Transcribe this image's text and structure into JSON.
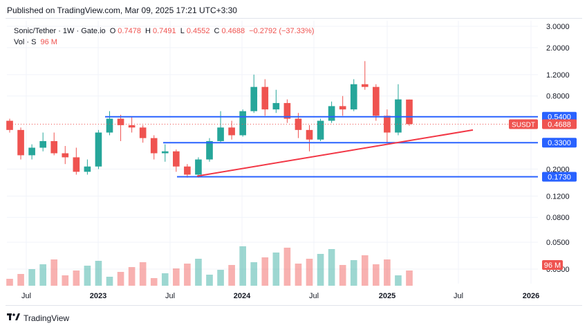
{
  "header": {
    "published": "Published on TradingView.com, Mar 09, 2025 17:21 UTC+3:30"
  },
  "legend": {
    "symbol": "Sonic/Tether · 1W · Gate.io",
    "o_label": "O",
    "o_val": "0.7478",
    "h_label": "H",
    "h_val": "0.7491",
    "l_label": "L",
    "l_val": "0.4552",
    "c_label": "C",
    "c_val": "0.4688",
    "change": "−0.2792 (−37.33%)",
    "vol_label": "Vol · S",
    "vol_val": "96 M"
  },
  "footer": {
    "logo_text": "TradingView"
  },
  "colors": {
    "up": "#26a69a",
    "down": "#ef5350",
    "level_line": "#2962ff",
    "trendline": "#f23645",
    "grid": "#f0f3fa",
    "axis_text": "#131722"
  },
  "chart_data": {
    "type": "candlestick",
    "scale": "log",
    "y_ticks": [
      "3.0000",
      "2.0000",
      "1.2000",
      "0.8000",
      "0.5400",
      "0.4688",
      "0.3300",
      "0.2000",
      "0.1730",
      "0.1200",
      "0.0800",
      "0.0500",
      "0.0300"
    ],
    "y_tick_values": [
      3.0,
      2.0,
      1.2,
      0.8,
      0.2,
      0.12,
      0.08,
      0.05,
      0.03
    ],
    "x_ticks": [
      "Jul",
      "2023",
      "Jul",
      "2024",
      "Jul",
      "2025",
      "Jul",
      "2026"
    ],
    "price_labels": [
      {
        "text": "0.5400",
        "value": 0.54,
        "kind": "level"
      },
      {
        "text": "0.3300",
        "value": 0.33,
        "kind": "level"
      },
      {
        "text": "0.1730",
        "value": 0.173,
        "kind": "level"
      }
    ],
    "last_price": {
      "symbol": "SUSDT",
      "text": "0.4688",
      "value": 0.4688
    },
    "volume_label": "96 M",
    "horizontal_levels": [
      0.54,
      0.33,
      0.173
    ],
    "trendline": {
      "from": {
        "date": "2023-09",
        "value": 0.175
      },
      "to": {
        "date": "2025-07",
        "value": 0.42
      }
    },
    "candles_close_path": [
      {
        "date": "2022-05",
        "o": 0.5,
        "h": 0.52,
        "c": 0.42,
        "l": 0.4
      },
      {
        "date": "2022-06",
        "o": 0.42,
        "h": 0.44,
        "c": 0.26,
        "l": 0.24
      },
      {
        "date": "2022-07",
        "o": 0.26,
        "h": 0.32,
        "c": 0.3,
        "l": 0.24
      },
      {
        "date": "2022-08",
        "o": 0.3,
        "h": 0.4,
        "c": 0.34,
        "l": 0.28
      },
      {
        "date": "2022-09",
        "o": 0.34,
        "h": 0.4,
        "c": 0.27,
        "l": 0.26
      },
      {
        "date": "2022-10",
        "o": 0.27,
        "h": 0.31,
        "c": 0.25,
        "l": 0.22
      },
      {
        "date": "2022-11",
        "o": 0.25,
        "h": 0.3,
        "c": 0.19,
        "l": 0.18
      },
      {
        "date": "2022-12",
        "o": 0.19,
        "h": 0.24,
        "c": 0.21,
        "l": 0.18
      },
      {
        "date": "2023-01",
        "o": 0.21,
        "h": 0.42,
        "c": 0.4,
        "l": 0.2
      },
      {
        "date": "2023-02",
        "o": 0.4,
        "h": 0.6,
        "c": 0.52,
        "l": 0.38
      },
      {
        "date": "2023-03",
        "o": 0.52,
        "h": 0.56,
        "c": 0.46,
        "l": 0.34
      },
      {
        "date": "2023-04",
        "o": 0.46,
        "h": 0.54,
        "c": 0.44,
        "l": 0.4
      },
      {
        "date": "2023-05",
        "o": 0.44,
        "h": 0.46,
        "c": 0.36,
        "l": 0.33
      },
      {
        "date": "2023-06",
        "o": 0.36,
        "h": 0.38,
        "c": 0.27,
        "l": 0.24
      },
      {
        "date": "2023-07",
        "o": 0.27,
        "h": 0.32,
        "c": 0.28,
        "l": 0.23
      },
      {
        "date": "2023-08",
        "o": 0.28,
        "h": 0.29,
        "c": 0.21,
        "l": 0.19
      },
      {
        "date": "2023-09",
        "o": 0.21,
        "h": 0.22,
        "c": 0.18,
        "l": 0.17
      },
      {
        "date": "2023-10",
        "o": 0.18,
        "h": 0.25,
        "c": 0.24,
        "l": 0.17
      },
      {
        "date": "2023-11",
        "o": 0.24,
        "h": 0.36,
        "c": 0.34,
        "l": 0.23
      },
      {
        "date": "2023-12",
        "o": 0.34,
        "h": 0.6,
        "c": 0.44,
        "l": 0.33
      },
      {
        "date": "2024-01",
        "o": 0.44,
        "h": 0.5,
        "c": 0.38,
        "l": 0.35
      },
      {
        "date": "2024-02",
        "o": 0.38,
        "h": 0.62,
        "c": 0.6,
        "l": 0.37
      },
      {
        "date": "2024-03",
        "o": 0.6,
        "h": 1.2,
        "c": 0.95,
        "l": 0.58
      },
      {
        "date": "2024-04",
        "o": 0.95,
        "h": 1.1,
        "c": 0.62,
        "l": 0.55
      },
      {
        "date": "2024-05",
        "o": 0.62,
        "h": 0.9,
        "c": 0.7,
        "l": 0.58
      },
      {
        "date": "2024-06",
        "o": 0.7,
        "h": 0.75,
        "c": 0.52,
        "l": 0.48
      },
      {
        "date": "2024-07",
        "o": 0.52,
        "h": 0.58,
        "c": 0.42,
        "l": 0.36
      },
      {
        "date": "2024-08",
        "o": 0.42,
        "h": 0.46,
        "c": 0.35,
        "l": 0.28
      },
      {
        "date": "2024-09",
        "o": 0.35,
        "h": 0.52,
        "c": 0.5,
        "l": 0.34
      },
      {
        "date": "2024-10",
        "o": 0.5,
        "h": 0.72,
        "c": 0.66,
        "l": 0.48
      },
      {
        "date": "2024-11",
        "o": 0.66,
        "h": 0.8,
        "c": 0.62,
        "l": 0.55
      },
      {
        "date": "2024-12",
        "o": 0.62,
        "h": 1.1,
        "c": 1.0,
        "l": 0.6
      },
      {
        "date": "2025-01",
        "o": 1.0,
        "h": 1.55,
        "c": 0.95,
        "l": 0.9
      },
      {
        "date": "2025-02",
        "o": 0.95,
        "h": 1.0,
        "c": 0.55,
        "l": 0.5
      },
      {
        "date": "2025-03",
        "o": 0.55,
        "h": 0.62,
        "c": 0.4,
        "l": 0.33
      },
      {
        "date": "2025-04",
        "o": 0.4,
        "h": 1.0,
        "c": 0.75,
        "l": 0.38
      },
      {
        "date": "2025-05",
        "o": 0.7478,
        "h": 0.7491,
        "c": 0.4688,
        "l": 0.4552
      }
    ],
    "grid": true,
    "legend_position": "top-left"
  }
}
